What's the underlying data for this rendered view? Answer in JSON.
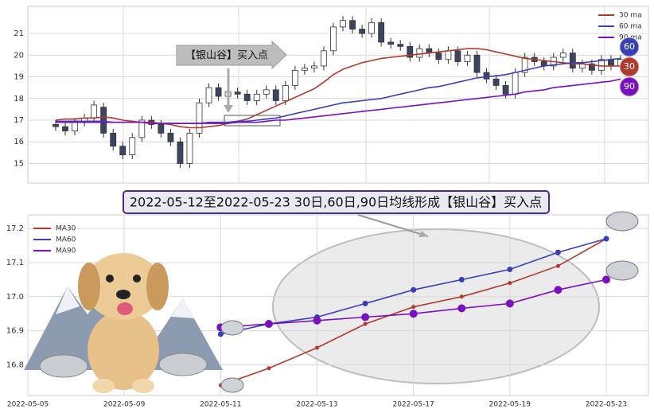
{
  "chart_data": [
    {
      "type": "candlestick",
      "annotation": "【银山谷】买入点",
      "categories": [
        null,
        null,
        null,
        null,
        null,
        null,
        null,
        null,
        null,
        null,
        null,
        null,
        null,
        null,
        null,
        null,
        null,
        null,
        null,
        null,
        null,
        null,
        null,
        null,
        null,
        null,
        null,
        null,
        null,
        null,
        null,
        null,
        null,
        null,
        null,
        null,
        null,
        null,
        null,
        null,
        null,
        null,
        null,
        null,
        null,
        null,
        null,
        null,
        null,
        null,
        null,
        null,
        null,
        null,
        null,
        null,
        null,
        null,
        null,
        null
      ],
      "open": [
        16.8,
        16.7,
        16.5,
        16.9,
        17.1,
        17.6,
        16.4,
        15.8,
        15.4,
        16.2,
        17.0,
        16.8,
        16.4,
        16.0,
        15.0,
        16.4,
        17.8,
        18.5,
        18.1,
        18.3,
        18.2,
        17.9,
        18.2,
        18.4,
        17.9,
        18.6,
        19.3,
        19.4,
        19.5,
        20.2,
        21.3,
        21.6,
        21.2,
        21.0,
        21.5,
        20.6,
        20.5,
        20.4,
        19.9,
        20.3,
        20.1,
        19.8,
        20.2,
        19.7,
        20.0,
        19.2,
        18.9,
        18.6,
        18.2,
        19.2,
        19.9,
        19.7,
        19.5,
        19.9,
        20.1,
        19.4,
        19.6,
        19.3,
        19.8,
        19.5
      ],
      "high": [
        17.0,
        16.9,
        17.1,
        17.3,
        17.9,
        17.8,
        16.6,
        16.0,
        16.4,
        17.2,
        17.2,
        17.0,
        16.6,
        16.2,
        16.6,
        18.0,
        18.7,
        18.7,
        18.5,
        18.5,
        18.4,
        18.4,
        18.6,
        18.6,
        18.8,
        19.5,
        19.6,
        19.7,
        20.4,
        21.5,
        21.8,
        21.8,
        21.4,
        21.7,
        21.7,
        20.8,
        20.7,
        20.6,
        20.5,
        20.5,
        20.3,
        20.4,
        20.4,
        20.2,
        20.2,
        19.4,
        19.1,
        18.8,
        19.4,
        20.1,
        20.1,
        19.9,
        20.1,
        20.3,
        20.3,
        19.8,
        19.8,
        20.0,
        20.0,
        20.0
      ],
      "low": [
        16.5,
        16.3,
        16.3,
        16.7,
        16.9,
        16.2,
        15.6,
        15.2,
        15.2,
        16.0,
        16.6,
        16.2,
        15.8,
        14.8,
        14.8,
        16.2,
        17.6,
        17.9,
        17.9,
        18.0,
        17.7,
        17.7,
        18.0,
        17.7,
        17.7,
        18.4,
        19.1,
        19.2,
        19.3,
        20.0,
        21.1,
        21.0,
        20.8,
        20.8,
        20.4,
        20.3,
        20.2,
        19.7,
        19.7,
        19.9,
        19.6,
        19.6,
        19.5,
        19.5,
        19.0,
        18.7,
        18.4,
        18.0,
        18.0,
        19.0,
        19.5,
        19.3,
        19.3,
        19.7,
        19.2,
        19.2,
        19.1,
        19.1,
        19.3,
        19.3
      ],
      "close": [
        16.7,
        16.5,
        16.9,
        17.1,
        17.7,
        16.4,
        15.8,
        15.4,
        16.2,
        17.0,
        16.8,
        16.4,
        16.0,
        15.0,
        16.4,
        17.8,
        18.5,
        18.1,
        18.3,
        18.2,
        17.9,
        18.2,
        18.4,
        17.9,
        18.6,
        19.3,
        19.4,
        19.5,
        20.2,
        21.3,
        21.6,
        21.2,
        21.0,
        21.5,
        20.6,
        20.5,
        20.4,
        19.9,
        20.3,
        20.1,
        19.8,
        20.2,
        19.7,
        20.0,
        19.2,
        18.9,
        18.6,
        18.2,
        19.2,
        19.9,
        19.7,
        19.5,
        19.9,
        20.1,
        19.4,
        19.6,
        19.3,
        19.8,
        19.5,
        19.8
      ],
      "up_color": "#ffffff",
      "down_color": "#3b4560",
      "series": [
        {
          "name": "30 ma",
          "badge": "30",
          "color": "#b03a2e",
          "values": [
            17.0,
            17.05,
            17.05,
            17.1,
            17.1,
            17.15,
            17.1,
            17.0,
            16.95,
            16.9,
            16.9,
            16.85,
            16.8,
            16.7,
            16.65,
            16.65,
            16.7,
            16.75,
            16.85,
            16.95,
            17.05,
            17.25,
            17.45,
            17.65,
            17.85,
            18.05,
            18.25,
            18.45,
            18.75,
            19.1,
            19.35,
            19.5,
            19.65,
            19.75,
            19.85,
            19.9,
            19.95,
            20.0,
            20.05,
            20.1,
            20.15,
            20.2,
            20.25,
            20.3,
            20.3,
            20.25,
            20.15,
            20.05,
            19.95,
            19.85,
            19.8,
            19.75,
            19.7,
            19.65,
            19.6,
            19.6,
            19.55,
            19.5,
            19.5,
            19.5
          ]
        },
        {
          "name": "60 ma",
          "badge": "60",
          "color": "#3a3fb5",
          "values": [
            16.95,
            16.95,
            16.95,
            16.95,
            16.95,
            16.95,
            16.9,
            16.9,
            16.9,
            16.9,
            16.85,
            16.85,
            16.85,
            16.85,
            16.85,
            16.85,
            16.9,
            16.9,
            16.9,
            16.95,
            16.95,
            17.0,
            17.05,
            17.1,
            17.2,
            17.3,
            17.4,
            17.5,
            17.6,
            17.7,
            17.8,
            17.85,
            17.9,
            17.95,
            18.0,
            18.1,
            18.2,
            18.3,
            18.4,
            18.5,
            18.55,
            18.65,
            18.75,
            18.85,
            18.95,
            19.0,
            19.05,
            19.1,
            19.2,
            19.3,
            19.4,
            19.5,
            19.55,
            19.6,
            19.65,
            19.65,
            19.7,
            19.75,
            19.8,
            19.85
          ]
        },
        {
          "name": "90 ma",
          "badge": "90",
          "color": "#7b10c0",
          "values": [
            16.9,
            16.9,
            16.9,
            16.9,
            16.9,
            16.9,
            16.9,
            16.9,
            16.9,
            16.9,
            16.85,
            16.85,
            16.85,
            16.85,
            16.85,
            16.85,
            16.85,
            16.85,
            16.85,
            16.9,
            16.9,
            16.9,
            16.95,
            17.0,
            17.0,
            17.05,
            17.1,
            17.15,
            17.2,
            17.25,
            17.3,
            17.35,
            17.4,
            17.45,
            17.5,
            17.55,
            17.6,
            17.65,
            17.7,
            17.75,
            17.8,
            17.85,
            17.9,
            17.95,
            18.0,
            18.05,
            18.1,
            18.15,
            18.2,
            18.3,
            18.35,
            18.4,
            18.5,
            18.55,
            18.6,
            18.65,
            18.7,
            18.75,
            18.8,
            18.9
          ]
        }
      ],
      "ylim": [
        14.1,
        22.25
      ],
      "yticks": [
        15,
        16,
        17,
        18,
        19,
        20,
        21
      ],
      "grid": true
    },
    {
      "type": "line",
      "title": "2022-05-12至2022-05-23 30日,60日,90日均线形成【银山谷】买入点",
      "categories": [
        "2022-05-05",
        null,
        "2022-05-09",
        null,
        "2022-05-11",
        null,
        "2022-05-13",
        null,
        "2022-05-17",
        null,
        "2022-05-19",
        null,
        "2022-05-23"
      ],
      "series": [
        {
          "name": "MA30",
          "color": "#b03a2e",
          "values": [
            null,
            null,
            null,
            null,
            16.74,
            16.79,
            16.85,
            16.92,
            16.97,
            17.0,
            17.04,
            17.09,
            17.17
          ]
        },
        {
          "name": "MA60",
          "color": "#3a3fb5",
          "values": [
            null,
            null,
            null,
            null,
            16.89,
            16.92,
            16.94,
            16.98,
            17.02,
            17.05,
            17.08,
            17.13,
            17.17
          ]
        },
        {
          "name": "MA90",
          "color": "#7b10c0",
          "values": [
            null,
            null,
            null,
            null,
            16.91,
            16.92,
            16.93,
            16.94,
            16.95,
            16.966,
            16.98,
            17.02,
            17.05
          ]
        }
      ],
      "ylim": [
        16.71,
        17.24
      ],
      "yticks": [
        16.8,
        16.9,
        {
          "value": 17,
          "label": "17.0"
        },
        17.1,
        17.2
      ],
      "grid": true
    }
  ]
}
